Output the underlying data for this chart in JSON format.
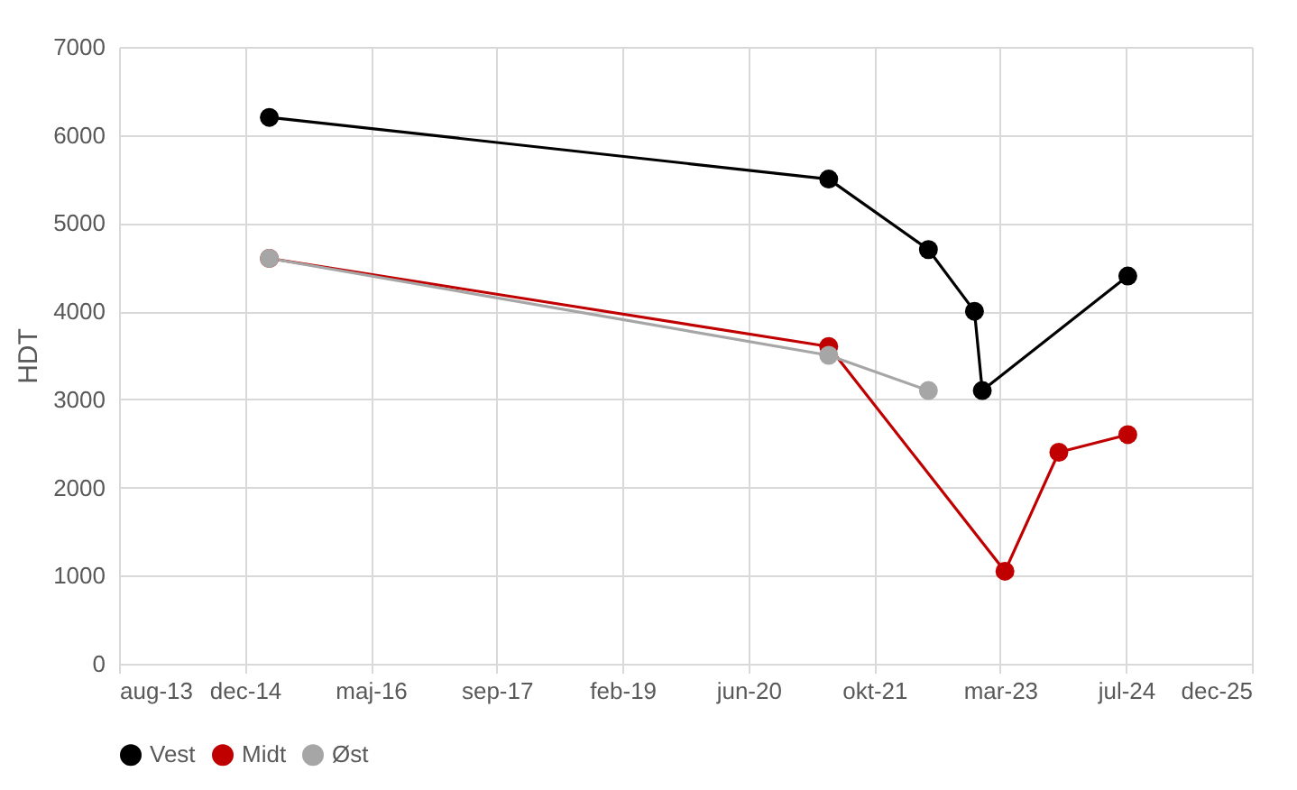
{
  "chart_data": {
    "type": "line",
    "ylabel": "HDT",
    "xlim": [
      "2013-08-12",
      "2025-12-07"
    ],
    "xticks": [
      {
        "value": "2013-08-12",
        "label": "aug-13"
      },
      {
        "value": "2014-12-25",
        "label": "dec-14"
      },
      {
        "value": "2016-05-08",
        "label": "maj-16"
      },
      {
        "value": "2017-09-20",
        "label": "sep-17"
      },
      {
        "value": "2019-02-02",
        "label": "feb-19"
      },
      {
        "value": "2020-06-16",
        "label": "jun-20"
      },
      {
        "value": "2021-10-29",
        "label": "okt-21"
      },
      {
        "value": "2023-03-13",
        "label": "mar-23"
      },
      {
        "value": "2024-07-25",
        "label": "jul-24"
      },
      {
        "value": "2025-12-07",
        "label": "dec-25"
      }
    ],
    "ylim": [
      0,
      7000
    ],
    "yticks": [
      0,
      1000,
      2000,
      3000,
      4000,
      5000,
      6000,
      7000
    ],
    "grid": true,
    "legend": "bottom",
    "marker": "circle",
    "series": [
      {
        "name": "Vest",
        "color": "#000000",
        "x": [
          "2015-04",
          "2021-05",
          "2022-06",
          "2022-12",
          "2023-01",
          "2024-08"
        ],
        "values": [
          6200,
          5500,
          4700,
          4000,
          3100,
          4400
        ]
      },
      {
        "name": "Midt",
        "color": "#c00000",
        "x": [
          "2015-04",
          "2021-05",
          "2023-04",
          "2023-11",
          "2024-08"
        ],
        "values": [
          4600,
          3600,
          1050,
          2400,
          2600
        ]
      },
      {
        "name": "Øst",
        "color": "#a6a6a6",
        "x": [
          "2015-04",
          "2021-05",
          "2022-06"
        ],
        "values": [
          4600,
          3500,
          3100
        ]
      }
    ]
  }
}
